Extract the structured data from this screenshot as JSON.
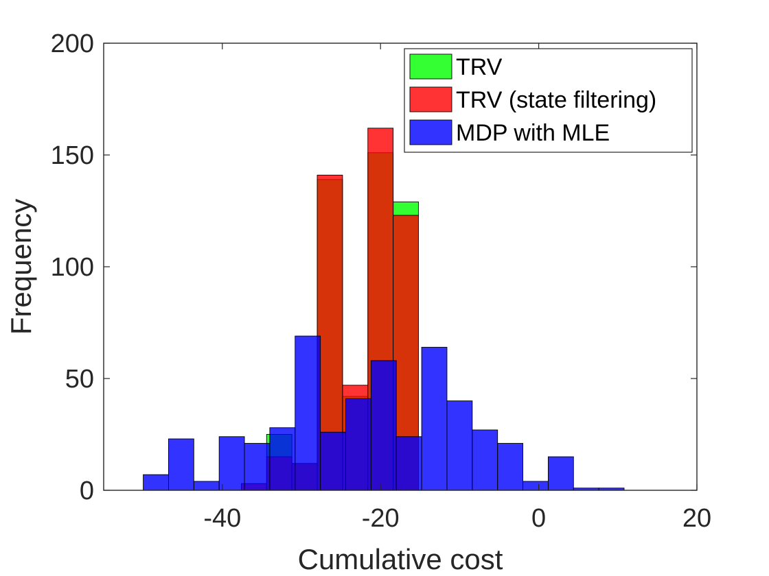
{
  "chart_data": {
    "type": "bar",
    "title": "",
    "xlabel": "Cumulative cost",
    "ylabel": "Frequency",
    "xlim": [
      -55,
      20
    ],
    "ylim": [
      0,
      200
    ],
    "xticks": [
      -40,
      -20,
      0,
      20
    ],
    "yticks": [
      0,
      50,
      100,
      150,
      200
    ],
    "legend_position": "top-right",
    "series": [
      {
        "name": "TRV",
        "color": "#00ff00",
        "bins": [
          {
            "x0": -34.4,
            "x1": -31.2,
            "value": 25
          },
          {
            "x0": -31.2,
            "x1": -28.0,
            "value": 12
          },
          {
            "x0": -28.0,
            "x1": -24.8,
            "value": 139
          },
          {
            "x0": -24.8,
            "x1": -21.6,
            "value": 42
          },
          {
            "x0": -21.6,
            "x1": -18.4,
            "value": 151
          },
          {
            "x0": -18.4,
            "x1": -15.2,
            "value": 129
          }
        ]
      },
      {
        "name": "TRV (state filtering)",
        "color": "#ff0000",
        "bins": [
          {
            "x0": -37.6,
            "x1": -34.4,
            "value": 3
          },
          {
            "x0": -34.4,
            "x1": -31.2,
            "value": 15
          },
          {
            "x0": -31.2,
            "x1": -28.0,
            "value": 12
          },
          {
            "x0": -28.0,
            "x1": -24.8,
            "value": 141
          },
          {
            "x0": -24.8,
            "x1": -21.6,
            "value": 47
          },
          {
            "x0": -21.6,
            "x1": -18.4,
            "value": 162
          },
          {
            "x0": -18.4,
            "x1": -15.2,
            "value": 123
          }
        ]
      },
      {
        "name": "MDP with MLE",
        "color": "#0000ff",
        "bins": [
          {
            "x0": -50.0,
            "x1": -46.8,
            "value": 7
          },
          {
            "x0": -46.8,
            "x1": -43.6,
            "value": 23
          },
          {
            "x0": -43.6,
            "x1": -40.4,
            "value": 4
          },
          {
            "x0": -40.4,
            "x1": -37.2,
            "value": 24
          },
          {
            "x0": -37.2,
            "x1": -34.0,
            "value": 21
          },
          {
            "x0": -34.0,
            "x1": -30.8,
            "value": 28
          },
          {
            "x0": -30.8,
            "x1": -27.6,
            "value": 69
          },
          {
            "x0": -27.6,
            "x1": -24.4,
            "value": 26
          },
          {
            "x0": -24.4,
            "x1": -21.2,
            "value": 41
          },
          {
            "x0": -21.2,
            "x1": -18.0,
            "value": 58
          },
          {
            "x0": -18.0,
            "x1": -14.8,
            "value": 24
          },
          {
            "x0": -14.8,
            "x1": -11.6,
            "value": 64
          },
          {
            "x0": -11.6,
            "x1": -8.4,
            "value": 40
          },
          {
            "x0": -8.4,
            "x1": -5.2,
            "value": 27
          },
          {
            "x0": -5.2,
            "x1": -2.0,
            "value": 21
          },
          {
            "x0": -2.0,
            "x1": 1.2,
            "value": 4
          },
          {
            "x0": 1.2,
            "x1": 4.4,
            "value": 15
          },
          {
            "x0": 4.4,
            "x1": 7.6,
            "value": 1
          },
          {
            "x0": 7.6,
            "x1": 10.8,
            "value": 1
          }
        ]
      }
    ]
  }
}
